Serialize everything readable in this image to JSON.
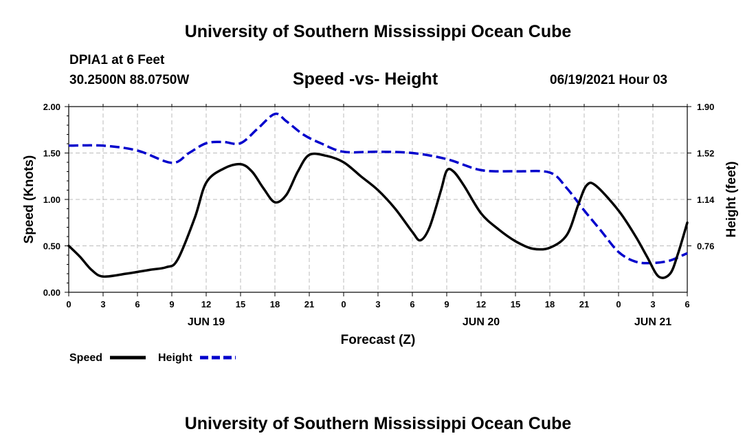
{
  "header": {
    "title": "University of Southern Mississippi Ocean Cube",
    "station": "DPIA1 at 6 Feet",
    "coords": "30.2500N  88.0750W",
    "datetime": "06/19/2021 Hour 03"
  },
  "footer": {
    "title": "University of Southern Mississippi Ocean Cube"
  },
  "colors": {
    "speed": "#000000",
    "height": "#0000cc",
    "grid": "#bbbbbb"
  },
  "chart_data": {
    "type": "line",
    "title": "Speed -vs- Height",
    "xlabel": "Forecast (Z)",
    "ylabel": "Speed (Knots)",
    "y2label": "Height (feet)",
    "x_range_hours": [
      0,
      54
    ],
    "x_tick_hours": [
      0,
      3,
      6,
      9,
      12,
      15,
      18,
      21,
      24,
      27,
      30,
      33,
      36,
      39,
      42,
      45,
      48,
      51,
      54
    ],
    "x_tick_labels": [
      "0",
      "3",
      "6",
      "9",
      "12",
      "15",
      "18",
      "21",
      "0",
      "3",
      "6",
      "9",
      "12",
      "15",
      "18",
      "21",
      "0",
      "3",
      "6"
    ],
    "dates": [
      {
        "label": "JUN 19",
        "hour": 12
      },
      {
        "label": "JUN 20",
        "hour": 36
      },
      {
        "label": "JUN 21",
        "hour": 51
      }
    ],
    "ylim": [
      0,
      2.0
    ],
    "y_ticks": [
      0,
      0.5,
      1.0,
      1.5,
      2.0
    ],
    "y_tick_labels": [
      "0.00",
      "0.50",
      "1.00",
      "1.50",
      "2.00"
    ],
    "y2lim": [
      0.38,
      1.9
    ],
    "y2_ticks": [
      0.76,
      1.14,
      1.52,
      1.9
    ],
    "y2_tick_labels": [
      "0.76",
      "1.14",
      "1.52",
      "1.90"
    ],
    "grid": true,
    "legend": [
      {
        "label": "Speed",
        "series": "speed"
      },
      {
        "label": "Height",
        "series": "height"
      }
    ],
    "series": [
      {
        "name": "Speed",
        "key": "speed",
        "axis": "left",
        "style": "solid",
        "points": [
          [
            0,
            0.5
          ],
          [
            1,
            0.38
          ],
          [
            2,
            0.24
          ],
          [
            3,
            0.17
          ],
          [
            5,
            0.2
          ],
          [
            7,
            0.24
          ],
          [
            8.5,
            0.27
          ],
          [
            9.5,
            0.35
          ],
          [
            11,
            0.8
          ],
          [
            12,
            1.18
          ],
          [
            13.5,
            1.33
          ],
          [
            15,
            1.38
          ],
          [
            16,
            1.3
          ],
          [
            17,
            1.12
          ],
          [
            18,
            0.97
          ],
          [
            19,
            1.05
          ],
          [
            20,
            1.3
          ],
          [
            21,
            1.48
          ],
          [
            22.5,
            1.47
          ],
          [
            24,
            1.4
          ],
          [
            25.5,
            1.25
          ],
          [
            27,
            1.1
          ],
          [
            28.5,
            0.9
          ],
          [
            30,
            0.65
          ],
          [
            30.7,
            0.56
          ],
          [
            31.5,
            0.7
          ],
          [
            32.5,
            1.1
          ],
          [
            33,
            1.31
          ],
          [
            33.6,
            1.3
          ],
          [
            34.5,
            1.15
          ],
          [
            36,
            0.85
          ],
          [
            37.5,
            0.68
          ],
          [
            39,
            0.55
          ],
          [
            40.5,
            0.47
          ],
          [
            42,
            0.48
          ],
          [
            43.5,
            0.62
          ],
          [
            44.5,
            0.95
          ],
          [
            45.2,
            1.15
          ],
          [
            46,
            1.15
          ],
          [
            48,
            0.88
          ],
          [
            49.5,
            0.6
          ],
          [
            50.5,
            0.38
          ],
          [
            51.5,
            0.17
          ],
          [
            52.5,
            0.2
          ],
          [
            53.2,
            0.42
          ],
          [
            54,
            0.75
          ]
        ]
      },
      {
        "name": "Height",
        "key": "height",
        "axis": "right",
        "style": "dashed",
        "points": [
          [
            0,
            1.58
          ],
          [
            3,
            1.58
          ],
          [
            6,
            1.54
          ],
          [
            9,
            1.44
          ],
          [
            10.5,
            1.52
          ],
          [
            12,
            1.6
          ],
          [
            13.5,
            1.61
          ],
          [
            15,
            1.6
          ],
          [
            16.5,
            1.72
          ],
          [
            18,
            1.84
          ],
          [
            19,
            1.78
          ],
          [
            20.5,
            1.67
          ],
          [
            22,
            1.6
          ],
          [
            24,
            1.53
          ],
          [
            27,
            1.53
          ],
          [
            30,
            1.52
          ],
          [
            33,
            1.47
          ],
          [
            36,
            1.38
          ],
          [
            39,
            1.37
          ],
          [
            42,
            1.36
          ],
          [
            43.5,
            1.23
          ],
          [
            45,
            1.05
          ],
          [
            46.5,
            0.88
          ],
          [
            48,
            0.71
          ],
          [
            49.5,
            0.63
          ],
          [
            51,
            0.62
          ],
          [
            52.5,
            0.64
          ],
          [
            54,
            0.7
          ]
        ]
      }
    ]
  }
}
